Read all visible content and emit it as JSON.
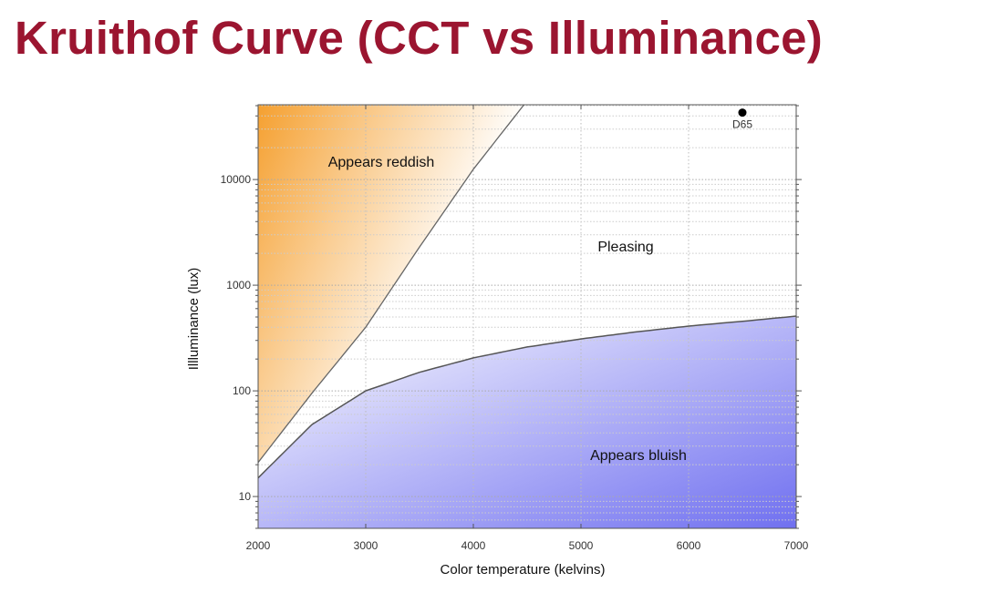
{
  "slide": {
    "title": "Kruithof Curve (CCT vs Illuminance)"
  },
  "chart_data": {
    "type": "area",
    "title": "Kruithof Curve (CCT vs Illuminance)",
    "xlabel": "Color temperature (kelvins)",
    "ylabel": "Illluminance (lux)",
    "xlim": [
      2000,
      7000
    ],
    "ylim": [
      5,
      51000
    ],
    "yscale": "log",
    "grid": true,
    "xticks": [
      "2000",
      "3000",
      "4000",
      "5000",
      "6000",
      "7000"
    ],
    "yticks": [
      "10",
      "100",
      "1000",
      "10000"
    ],
    "series": [
      {
        "name": "upper boundary (reddish)",
        "x": [
          2000,
          2500,
          3000,
          3500,
          4000,
          4470
        ],
        "y": [
          21,
          95,
          400,
          2300,
          12500,
          51000
        ]
      },
      {
        "name": "lower boundary (bluish)",
        "x": [
          2000,
          2500,
          3000,
          3500,
          4000,
          4500,
          5000,
          5500,
          6000,
          6500,
          7000
        ],
        "y": [
          15,
          48,
          100,
          150,
          205,
          260,
          310,
          360,
          410,
          455,
          510
        ]
      }
    ],
    "regions": [
      {
        "label": "Appears reddish",
        "color": "#f5a030"
      },
      {
        "label": "Pleasing",
        "color": "#ffffff"
      },
      {
        "label": "Appears bluish",
        "color": "#7070f0"
      }
    ],
    "points": [
      {
        "label": "D65",
        "x": 6500,
        "y": 43000
      }
    ]
  }
}
